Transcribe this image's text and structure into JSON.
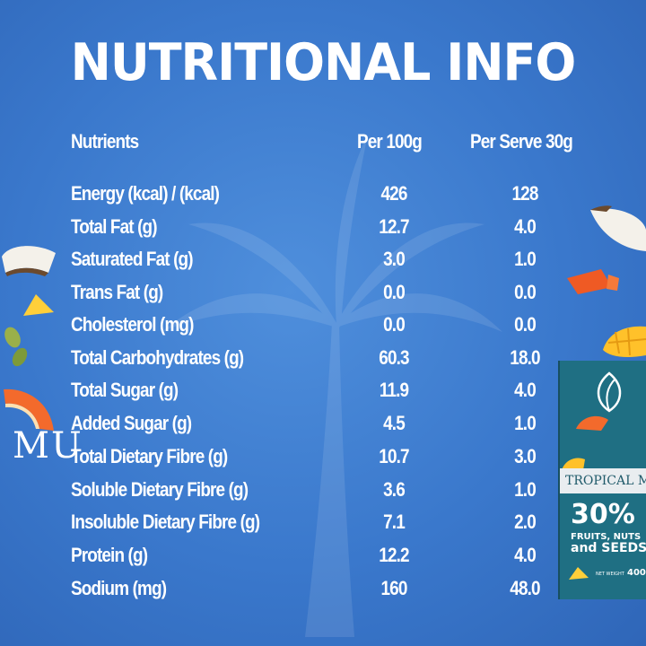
{
  "title": "NUTRITIONAL INFO",
  "headers": {
    "nutrients": "Nutrients",
    "per100": "Per 100g",
    "perServe": "Per Serve 30g"
  },
  "rows": [
    {
      "name": "Energy (kcal) / (kcal)",
      "per100": "426",
      "perServe": "128"
    },
    {
      "name": "Total Fat (g)",
      "per100": "12.7",
      "perServe": "4.0"
    },
    {
      "name": "Saturated Fat (g)",
      "per100": "3.0",
      "perServe": "1.0"
    },
    {
      "name": "Trans Fat (g)",
      "per100": "0.0",
      "perServe": "0.0"
    },
    {
      "name": "Cholesterol (mg)",
      "per100": "0.0",
      "perServe": "0.0"
    },
    {
      "name": "Total Carbohydrates (g)",
      "per100": "60.3",
      "perServe": "18.0"
    },
    {
      "name": "Total Sugar (g)",
      "per100": "11.9",
      "perServe": "4.0"
    },
    {
      "name": "Added Sugar (g)",
      "per100": "4.5",
      "perServe": "1.0"
    },
    {
      "name": "Total Dietary Fibre (g)",
      "per100": "10.7",
      "perServe": "3.0"
    },
    {
      "name": "Soluble Dietary Fibre (g)",
      "per100": "3.6",
      "perServe": "1.0"
    },
    {
      "name": "Insoluble Dietary Fibre (g)",
      "per100": "7.1",
      "perServe": "2.0"
    },
    {
      "name": "Protein (g)",
      "per100": "12.2",
      "perServe": "4.0"
    },
    {
      "name": "Sodium (mg)",
      "per100": "160",
      "perServe": "48.0"
    }
  ],
  "package": {
    "brand": "MU",
    "variant": "TROPICAL M",
    "percent": "30%",
    "line1": "FRUITS, NUTS",
    "line2": "and SEEDS",
    "weight_label": "NET WEIGHT",
    "weight": "400g"
  },
  "colors": {
    "background": "#3a78cc",
    "text": "#ffffff",
    "package": "#1f6f83"
  }
}
